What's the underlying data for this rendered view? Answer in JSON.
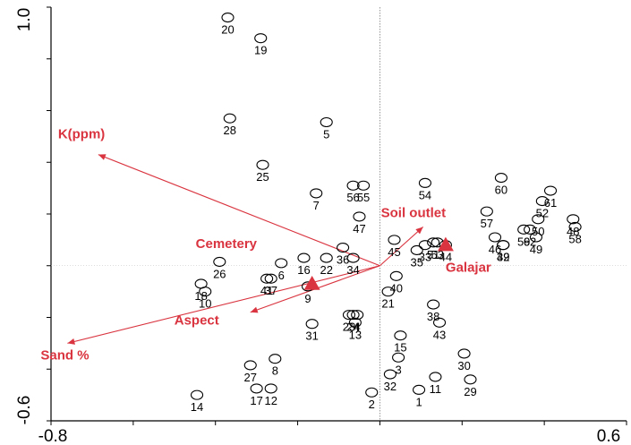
{
  "chart_data": {
    "type": "scatter",
    "title": "",
    "xlabel": "",
    "ylabel": "",
    "xlim": [
      -0.8,
      0.6
    ],
    "ylim": [
      -0.6,
      1.0
    ],
    "x_tick_labels": [
      "-0.8",
      "0.6"
    ],
    "y_tick_labels": [
      "1.0",
      "-0.6"
    ],
    "colors": {
      "vector": "#d9343f",
      "point": "#000000",
      "axis": "#000000"
    },
    "points": [
      {
        "label": "1",
        "x": 0.095,
        "y": -0.48
      },
      {
        "label": "2",
        "x": -0.02,
        "y": -0.49
      },
      {
        "label": "3",
        "x": 0.045,
        "y": -0.355
      },
      {
        "label": "4",
        "x": -0.055,
        "y": -0.19
      },
      {
        "label": "5",
        "x": -0.13,
        "y": 0.555
      },
      {
        "label": "6",
        "x": -0.24,
        "y": 0.01
      },
      {
        "label": "7",
        "x": -0.155,
        "y": 0.28
      },
      {
        "label": "8",
        "x": -0.255,
        "y": -0.36
      },
      {
        "label": "9",
        "x": -0.175,
        "y": -0.08
      },
      {
        "label": "10",
        "x": -0.425,
        "y": -0.1
      },
      {
        "label": "11",
        "x": 0.135,
        "y": -0.43
      },
      {
        "label": "12",
        "x": -0.265,
        "y": -0.475
      },
      {
        "label": "13",
        "x": -0.06,
        "y": -0.22
      },
      {
        "label": "14",
        "x": -0.445,
        "y": -0.5
      },
      {
        "label": "15",
        "x": 0.05,
        "y": -0.27
      },
      {
        "label": "16",
        "x": -0.185,
        "y": 0.03
      },
      {
        "label": "17",
        "x": -0.3,
        "y": -0.475
      },
      {
        "label": "18",
        "x": -0.435,
        "y": -0.07
      },
      {
        "label": "19",
        "x": -0.29,
        "y": 0.88
      },
      {
        "label": "20",
        "x": -0.37,
        "y": 0.96
      },
      {
        "label": "21",
        "x": 0.02,
        "y": -0.1
      },
      {
        "label": "22",
        "x": -0.13,
        "y": 0.03
      },
      {
        "label": "23",
        "x": -0.075,
        "y": -0.19
      },
      {
        "label": "24",
        "x": -0.065,
        "y": -0.19
      },
      {
        "label": "25",
        "x": -0.285,
        "y": 0.39
      },
      {
        "label": "26",
        "x": -0.39,
        "y": 0.015
      },
      {
        "label": "27",
        "x": -0.315,
        "y": -0.385
      },
      {
        "label": "28",
        "x": -0.365,
        "y": 0.57
      },
      {
        "label": "29",
        "x": 0.22,
        "y": -0.44
      },
      {
        "label": "30",
        "x": 0.205,
        "y": -0.34
      },
      {
        "label": "31",
        "x": -0.165,
        "y": -0.225
      },
      {
        "label": "32",
        "x": 0.025,
        "y": -0.42
      },
      {
        "label": "33",
        "x": 0.11,
        "y": 0.08
      },
      {
        "label": "34",
        "x": -0.065,
        "y": 0.03
      },
      {
        "label": "35",
        "x": 0.09,
        "y": 0.06
      },
      {
        "label": "36",
        "x": -0.09,
        "y": 0.07
      },
      {
        "label": "37",
        "x": -0.265,
        "y": -0.05
      },
      {
        "label": "38",
        "x": 0.13,
        "y": -0.15
      },
      {
        "label": "39",
        "x": 0.3,
        "y": 0.08
      },
      {
        "label": "40",
        "x": 0.04,
        "y": -0.04
      },
      {
        "label": "41",
        "x": -0.275,
        "y": -0.05
      },
      {
        "label": "42",
        "x": 0.3,
        "y": 0.08
      },
      {
        "label": "43",
        "x": 0.145,
        "y": -0.22
      },
      {
        "label": "44",
        "x": 0.16,
        "y": 0.08
      },
      {
        "label": "45",
        "x": 0.035,
        "y": 0.1
      },
      {
        "label": "46",
        "x": 0.28,
        "y": 0.11
      },
      {
        "label": "47",
        "x": -0.05,
        "y": 0.19
      },
      {
        "label": "48",
        "x": 0.47,
        "y": 0.18
      },
      {
        "label": "49",
        "x": 0.38,
        "y": 0.11
      },
      {
        "label": "50",
        "x": 0.385,
        "y": 0.18
      },
      {
        "label": "51",
        "x": 0.13,
        "y": 0.09
      },
      {
        "label": "52",
        "x": 0.395,
        "y": 0.25
      },
      {
        "label": "53",
        "x": 0.14,
        "y": 0.09
      },
      {
        "label": "54",
        "x": 0.11,
        "y": 0.32
      },
      {
        "label": "55",
        "x": -0.04,
        "y": 0.31
      },
      {
        "label": "56",
        "x": -0.065,
        "y": 0.31
      },
      {
        "label": "57",
        "x": 0.26,
        "y": 0.21
      },
      {
        "label": "58",
        "x": 0.475,
        "y": 0.15
      },
      {
        "label": "59",
        "x": 0.35,
        "y": 0.14
      },
      {
        "label": "60",
        "x": 0.295,
        "y": 0.34
      },
      {
        "label": "61",
        "x": 0.415,
        "y": 0.29
      },
      {
        "label": "62",
        "x": 0.365,
        "y": 0.14
      }
    ],
    "vectors": [
      {
        "label": "K(ppm)",
        "x": -0.685,
        "y": 0.43
      },
      {
        "label": "Sand %",
        "x": -0.76,
        "y": -0.3
      },
      {
        "label": "Aspect",
        "x": -0.315,
        "y": -0.18
      },
      {
        "label": "Soil outlet",
        "x": 0.105,
        "y": 0.15
      }
    ],
    "centroids": [
      {
        "label": "Cemetery",
        "x": -0.165,
        "y": -0.07
      },
      {
        "label": "Galajar",
        "x": 0.16,
        "y": 0.08
      }
    ]
  }
}
